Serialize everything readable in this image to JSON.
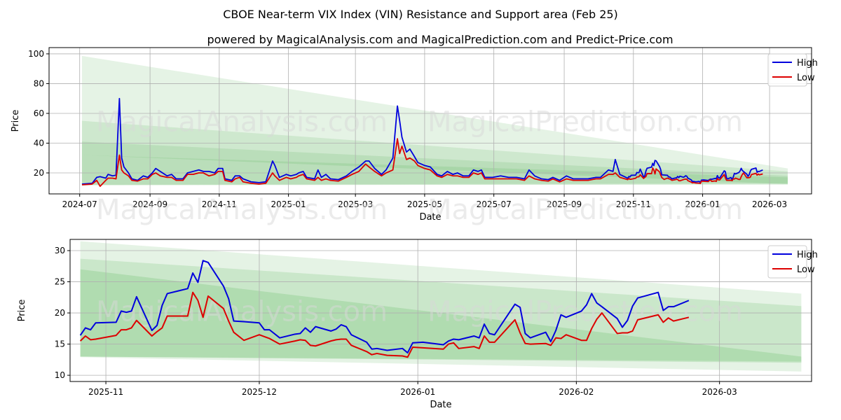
{
  "title": "CBOE Near-term VIX Index (VIN) Resistance and Support area (Feb 25)",
  "subtitle": "powered by MagicalAnalysis.com and MagicalPrediction.com and Predict-Price.com",
  "watermarks": [
    "MagicalAnalysis.com",
    "MagicalPrediction.com"
  ],
  "colors": {
    "high": "#0000dd",
    "low": "#dd0000",
    "band": "#2ca02c"
  },
  "chart_data": [
    {
      "type": "line",
      "xlabel": "Date",
      "ylabel": "Price",
      "xlim": [
        "2024-06-04",
        "2026-04-07"
      ],
      "ylim": [
        5.9,
        104.2
      ],
      "xticks": [
        "2024-07",
        "2024-09",
        "2024-11",
        "2025-01",
        "2025-03",
        "2025-05",
        "2025-07",
        "2025-09",
        "2025-11",
        "2026-01",
        "2026-03"
      ],
      "yticks": [
        20,
        40,
        60,
        80,
        100
      ],
      "grid": true,
      "legend": "top-right",
      "legend_entries": [
        "High",
        "Low"
      ],
      "bands": [
        {
          "from": "2024-07-03",
          "to": "2026-03-17",
          "top": [
            98.6,
            23
          ],
          "bottom": [
            11.5,
            12.5
          ],
          "opacity": 0.12
        },
        {
          "from": "2024-07-03",
          "to": "2026-03-17",
          "top": [
            55,
            21
          ],
          "bottom": [
            12,
            13
          ],
          "opacity": 0.12
        },
        {
          "from": "2024-07-03",
          "to": "2026-03-17",
          "top": [
            41,
            18
          ],
          "bottom": [
            32,
            12.5
          ],
          "opacity": 0.12
        },
        {
          "from": "2024-07-03",
          "to": "2026-03-17",
          "top": [
            32,
            17
          ],
          "bottom": [
            12,
            12
          ],
          "opacity": 0.12
        }
      ],
      "series_note": "continues with the second chart's points",
      "points": [
        [
          "2024-07-03",
          12.5,
          12
        ],
        [
          "2024-07-12",
          13,
          12.5
        ],
        [
          "2024-07-16",
          17,
          15
        ],
        [
          "2024-07-19",
          17.5,
          11
        ],
        [
          "2024-07-24",
          16.5,
          15
        ],
        [
          "2024-07-26",
          19,
          16.5
        ],
        [
          "2024-07-30",
          18,
          16.5
        ],
        [
          "2024-08-02",
          18.5,
          16
        ],
        [
          "2024-08-05",
          70,
          32
        ],
        [
          "2024-08-07",
          30,
          22
        ],
        [
          "2024-08-09",
          24,
          20
        ],
        [
          "2024-08-13",
          20,
          18
        ],
        [
          "2024-08-16",
          16,
          15
        ],
        [
          "2024-08-21",
          15,
          14.5
        ],
        [
          "2024-08-26",
          18,
          16
        ],
        [
          "2024-08-30",
          17,
          16
        ],
        [
          "2024-09-03",
          20,
          19
        ],
        [
          "2024-09-06",
          23,
          20
        ],
        [
          "2024-09-10",
          21,
          18
        ],
        [
          "2024-09-16",
          18,
          17
        ],
        [
          "2024-09-20",
          19,
          17
        ],
        [
          "2024-09-24",
          16,
          15
        ],
        [
          "2024-09-30",
          16,
          15
        ],
        [
          "2024-10-04",
          20,
          19
        ],
        [
          "2024-10-09",
          21,
          19
        ],
        [
          "2024-10-14",
          22,
          20
        ],
        [
          "2024-10-18",
          21,
          20
        ],
        [
          "2024-10-23",
          21,
          18
        ],
        [
          "2024-10-28",
          20,
          19
        ],
        [
          "2024-10-31",
          23,
          21
        ],
        [
          "2024-11-04",
          23,
          21
        ],
        [
          "2024-11-06",
          16,
          15
        ],
        [
          "2024-11-12",
          15,
          14
        ],
        [
          "2024-11-15",
          18,
          16
        ],
        [
          "2024-11-19",
          18,
          17
        ],
        [
          "2024-11-22",
          16,
          14
        ],
        [
          "2024-11-29",
          14,
          13
        ],
        [
          "2024-12-06",
          13.5,
          12.5
        ],
        [
          "2024-12-12",
          14,
          13
        ],
        [
          "2024-12-18",
          28,
          20
        ],
        [
          "2024-12-20",
          25,
          18
        ],
        [
          "2024-12-24",
          17,
          15
        ],
        [
          "2024-12-30",
          19,
          17
        ],
        [
          "2025-01-03",
          18,
          16
        ],
        [
          "2025-01-08",
          19,
          17
        ],
        [
          "2025-01-10",
          20,
          18
        ],
        [
          "2025-01-14",
          21,
          19
        ],
        [
          "2025-01-17",
          17,
          16
        ],
        [
          "2025-01-24",
          16,
          15
        ],
        [
          "2025-01-27",
          22,
          17
        ],
        [
          "2025-01-30",
          17,
          15
        ],
        [
          "2025-02-03",
          19,
          16
        ],
        [
          "2025-02-07",
          16,
          15
        ],
        [
          "2025-02-14",
          15.5,
          14.5
        ],
        [
          "2025-02-21",
          18,
          17
        ],
        [
          "2025-02-26",
          21,
          19
        ],
        [
          "2025-03-04",
          24,
          21
        ],
        [
          "2025-03-10",
          28,
          26
        ],
        [
          "2025-03-13",
          28,
          24
        ],
        [
          "2025-03-18",
          23,
          21
        ],
        [
          "2025-03-24",
          19,
          18
        ],
        [
          "2025-03-28",
          22,
          20
        ],
        [
          "2025-04-03",
          30,
          22
        ],
        [
          "2025-04-07",
          65,
          43
        ],
        [
          "2025-04-09",
          55,
          33
        ],
        [
          "2025-04-11",
          44,
          38
        ],
        [
          "2025-04-15",
          34,
          29
        ],
        [
          "2025-04-18",
          36,
          30
        ],
        [
          "2025-04-22",
          31,
          28
        ],
        [
          "2025-04-25",
          27,
          25
        ],
        [
          "2025-05-01",
          25,
          23
        ],
        [
          "2025-05-06",
          24,
          22
        ],
        [
          "2025-05-12",
          19,
          18
        ],
        [
          "2025-05-16",
          18,
          17
        ],
        [
          "2025-05-21",
          21,
          19
        ],
        [
          "2025-05-26",
          19,
          18
        ],
        [
          "2025-05-30",
          20,
          18
        ],
        [
          "2025-06-04",
          18,
          17
        ],
        [
          "2025-06-09",
          18,
          17
        ],
        [
          "2025-06-13",
          22,
          20
        ],
        [
          "2025-06-17",
          21,
          19
        ],
        [
          "2025-06-20",
          22,
          20
        ],
        [
          "2025-06-23",
          17,
          16
        ],
        [
          "2025-06-30",
          17,
          16
        ],
        [
          "2025-07-07",
          18,
          16
        ],
        [
          "2025-07-14",
          17,
          16
        ],
        [
          "2025-07-21",
          17,
          16
        ],
        [
          "2025-07-28",
          16,
          15
        ],
        [
          "2025-08-01",
          22,
          18
        ],
        [
          "2025-08-06",
          18,
          16
        ],
        [
          "2025-08-12",
          16,
          15
        ],
        [
          "2025-08-18",
          15.5,
          14.5
        ],
        [
          "2025-08-22",
          17,
          16
        ],
        [
          "2025-08-28",
          15,
          14
        ],
        [
          "2025-09-03",
          18,
          16
        ],
        [
          "2025-09-09",
          16,
          15
        ],
        [
          "2025-09-15",
          16,
          15
        ],
        [
          "2025-09-22",
          16,
          15
        ],
        [
          "2025-09-29",
          17,
          16
        ],
        [
          "2025-10-03",
          17,
          16
        ],
        [
          "2025-10-10",
          22,
          19
        ],
        [
          "2025-10-14",
          21,
          19
        ],
        [
          "2025-10-16",
          29,
          20
        ],
        [
          "2025-10-20",
          19,
          17
        ]
      ]
    },
    {
      "type": "line",
      "xlabel": "Date",
      "ylabel": "Price",
      "xlim": [
        "2025-10-25",
        "2026-03-19"
      ],
      "ylim": [
        9,
        31.8
      ],
      "xticks": [
        "2025-11",
        "2025-12",
        "2026-01",
        "2026-02",
        "2026-03"
      ],
      "yticks": [
        10,
        15,
        20,
        25,
        30
      ],
      "grid": true,
      "legend": "top-right",
      "legend_entries": [
        "High",
        "Low"
      ],
      "bands": [
        {
          "from": "2025-10-27",
          "to": "2026-03-17",
          "top": [
            31.5,
            23.1
          ],
          "bottom": [
            12.9,
            10.6
          ],
          "opacity": 0.12
        },
        {
          "from": "2025-10-27",
          "to": "2026-03-17",
          "top": [
            28.7,
            21.1
          ],
          "bottom": [
            13.0,
            12.2
          ],
          "opacity": 0.14
        },
        {
          "from": "2025-10-27",
          "to": "2026-03-17",
          "top": [
            27.0,
            13.0
          ],
          "bottom": [
            13.0,
            12.0
          ],
          "opacity": 0.16
        }
      ],
      "points": [
        [
          "2025-10-27",
          16.4,
          15.5
        ],
        [
          "2025-10-28",
          17.6,
          16.3
        ],
        [
          "2025-10-29",
          17.3,
          15.7
        ],
        [
          "2025-10-30",
          18.4,
          15.8
        ],
        [
          "2025-11-03",
          18.5,
          16.4
        ],
        [
          "2025-11-04",
          20.3,
          17.3
        ],
        [
          "2025-11-05",
          20.1,
          17.3
        ],
        [
          "2025-11-06",
          20.3,
          17.6
        ],
        [
          "2025-11-07",
          22.6,
          18.8
        ],
        [
          "2025-11-10",
          17.2,
          16.3
        ],
        [
          "2025-11-11",
          18.0,
          17.0
        ],
        [
          "2025-11-12",
          21.2,
          17.6
        ],
        [
          "2025-11-13",
          23.1,
          19.5
        ],
        [
          "2025-11-17",
          23.9,
          19.5
        ],
        [
          "2025-11-18",
          26.4,
          23.3
        ],
        [
          "2025-11-19",
          24.9,
          22.0
        ],
        [
          "2025-11-20",
          28.4,
          19.3
        ],
        [
          "2025-11-21",
          28.1,
          22.7
        ],
        [
          "2025-11-24",
          24.3,
          20.7
        ],
        [
          "2025-11-25",
          22.3,
          18.7
        ],
        [
          "2025-11-26",
          18.7,
          16.9
        ],
        [
          "2025-11-28",
          18.6,
          15.6
        ],
        [
          "2025-12-01",
          18.4,
          16.5
        ],
        [
          "2025-12-02",
          17.3,
          16.2
        ],
        [
          "2025-12-03",
          17.3,
          15.9
        ],
        [
          "2025-12-05",
          16.0,
          15.0
        ],
        [
          "2025-12-08",
          16.6,
          15.5
        ],
        [
          "2025-12-09",
          16.7,
          15.7
        ],
        [
          "2025-12-10",
          17.6,
          15.6
        ],
        [
          "2025-12-11",
          16.9,
          14.8
        ],
        [
          "2025-12-12",
          17.8,
          14.7
        ],
        [
          "2025-12-15",
          17.1,
          15.5
        ],
        [
          "2025-12-16",
          17.4,
          15.7
        ],
        [
          "2025-12-17",
          18.1,
          15.8
        ],
        [
          "2025-12-18",
          17.8,
          15.8
        ],
        [
          "2025-12-19",
          16.5,
          14.8
        ],
        [
          "2025-12-22",
          15.3,
          13.8
        ],
        [
          "2025-12-23",
          14.2,
          13.3
        ],
        [
          "2025-12-24",
          14.3,
          13.5
        ],
        [
          "2025-12-26",
          14.0,
          13.2
        ],
        [
          "2025-12-29",
          14.3,
          13.1
        ],
        [
          "2025-12-30",
          13.6,
          12.9
        ],
        [
          "2025-12-31",
          15.2,
          14.5
        ],
        [
          "2026-01-02",
          15.3,
          14.4
        ],
        [
          "2026-01-06",
          14.9,
          14.2
        ],
        [
          "2026-01-07",
          15.5,
          15.0
        ],
        [
          "2026-01-08",
          15.8,
          15.2
        ],
        [
          "2026-01-09",
          15.7,
          14.3
        ],
        [
          "2026-01-12",
          16.3,
          14.6
        ],
        [
          "2026-01-13",
          16.0,
          14.3
        ],
        [
          "2026-01-14",
          18.2,
          16.3
        ],
        [
          "2026-01-15",
          16.7,
          15.3
        ],
        [
          "2026-01-16",
          16.5,
          15.3
        ],
        [
          "2026-01-20",
          21.4,
          18.9
        ],
        [
          "2026-01-21",
          20.9,
          16.8
        ],
        [
          "2026-01-22",
          16.7,
          15.1
        ],
        [
          "2026-01-23",
          16.0,
          15.0
        ],
        [
          "2026-01-26",
          16.9,
          15.1
        ],
        [
          "2026-01-27",
          15.4,
          14.8
        ],
        [
          "2026-01-28",
          17.2,
          16.0
        ],
        [
          "2026-01-29",
          19.7,
          15.9
        ],
        [
          "2026-01-30",
          19.3,
          16.5
        ],
        [
          "2026-02-02",
          20.3,
          15.6
        ],
        [
          "2026-02-03",
          21.3,
          15.6
        ],
        [
          "2026-02-04",
          23.1,
          17.5
        ],
        [
          "2026-02-05",
          21.6,
          19.0
        ],
        [
          "2026-02-06",
          21.0,
          20.0
        ],
        [
          "2026-02-09",
          19.1,
          16.7
        ],
        [
          "2026-02-10",
          17.7,
          16.8
        ],
        [
          "2026-02-11",
          18.8,
          16.8
        ],
        [
          "2026-02-12",
          21.1,
          17.1
        ],
        [
          "2026-02-13",
          22.4,
          18.9
        ],
        [
          "2026-02-17",
          23.3,
          19.7
        ],
        [
          "2026-02-18",
          20.4,
          18.5
        ],
        [
          "2026-02-19",
          21.0,
          19.2
        ],
        [
          "2026-02-20",
          21.0,
          18.7
        ],
        [
          "2026-02-23",
          22.0,
          19.3
        ]
      ]
    }
  ]
}
